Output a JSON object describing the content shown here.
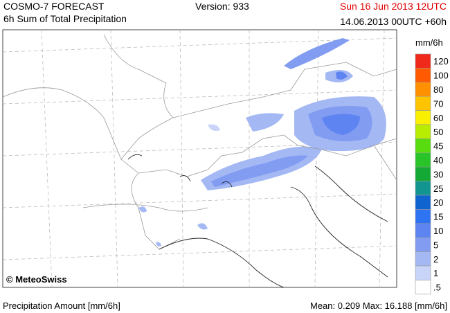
{
  "header": {
    "model": "COSMO-7 FORECAST",
    "product": "6h Sum of Total Precipitation",
    "version": "Version: 933",
    "valid": "Sun 16 Jun 2013 12UTC",
    "run": "14.06.2013 00UTC +60h"
  },
  "map": {
    "credit": "© MeteoSwiss"
  },
  "legend": {
    "unit": "mm/6h",
    "levels": [
      {
        "label": "120",
        "color": "#f02a1a"
      },
      {
        "label": "100",
        "color": "#ff5a00"
      },
      {
        "label": "80",
        "color": "#ff9000"
      },
      {
        "label": "70",
        "color": "#ffc400"
      },
      {
        "label": "60",
        "color": "#f8f000"
      },
      {
        "label": "50",
        "color": "#b8ec00"
      },
      {
        "label": "45",
        "color": "#58dc10"
      },
      {
        "label": "40",
        "color": "#28c428"
      },
      {
        "label": "30",
        "color": "#14a834"
      },
      {
        "label": "25",
        "color": "#129490"
      },
      {
        "label": "20",
        "color": "#1064d0"
      },
      {
        "label": "15",
        "color": "#2e74f2"
      },
      {
        "label": "10",
        "color": "#5e84f2"
      },
      {
        "label": "5",
        "color": "#829cf2"
      },
      {
        "label": "2",
        "color": "#a4b8f4"
      },
      {
        "label": "1",
        "color": "#c8d4f8"
      },
      {
        "label": ".5",
        "color": "#ffffff"
      }
    ]
  },
  "footer": {
    "left": "Precipitation Amount [mm/6h]",
    "stats": "Mean:  0.209 Max:  16.188 [mm/6h]"
  }
}
